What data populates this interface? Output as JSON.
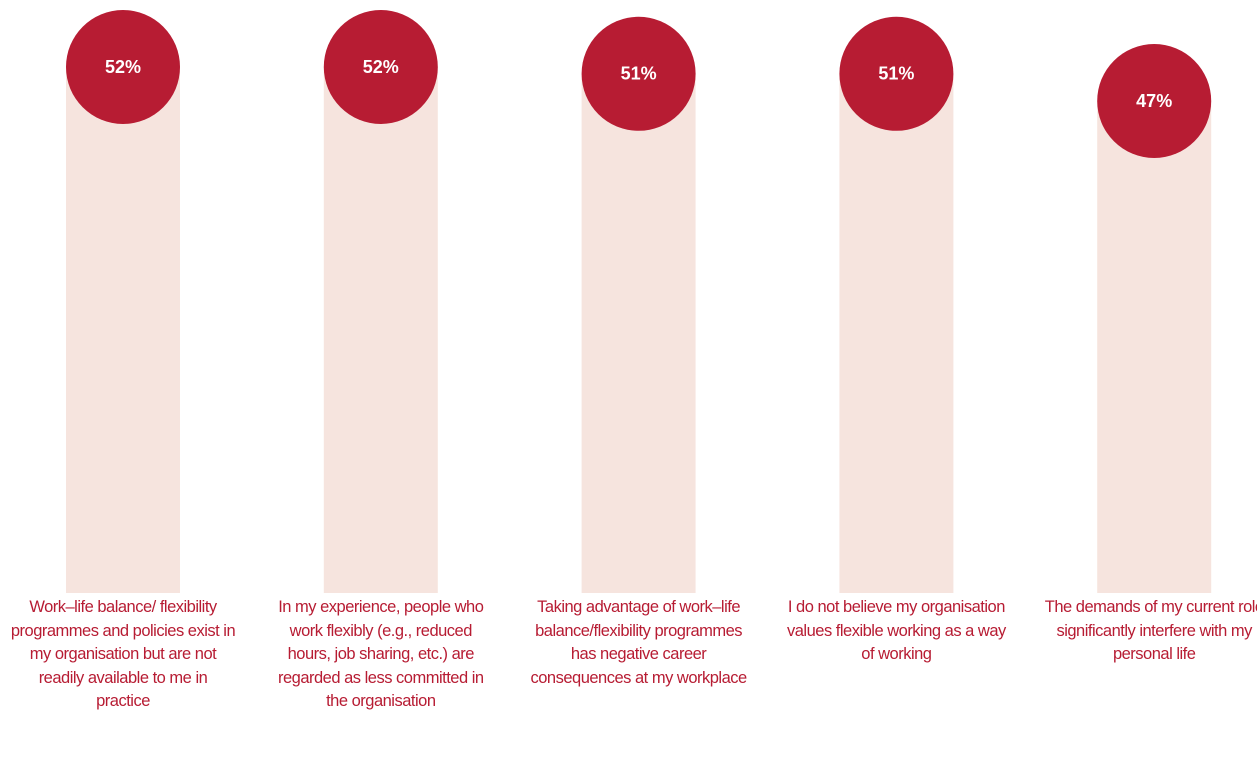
{
  "chart_data": {
    "type": "bar",
    "categories": [
      "Work–life balance/ flexibility programmes and policies exist in my organisation but are not readily available to me in practice",
      "In my experience, people who work flexibly (e.g., reduced hours, job sharing, etc.) are regarded as less committed in the organisation",
      "Taking advantage of work–life balance/flexibility programmes has negative career consequences at my workplace",
      "I do not believe my organisation values flexible working as a way of working",
      "The demands of my current role significantly interfere with my personal life"
    ],
    "values": [
      52,
      52,
      51,
      51,
      47
    ],
    "value_labels": [
      "52%",
      "52%",
      "51%",
      "51%",
      "47%"
    ],
    "color": "#b71c33",
    "bar_color": "#f6e4de"
  }
}
